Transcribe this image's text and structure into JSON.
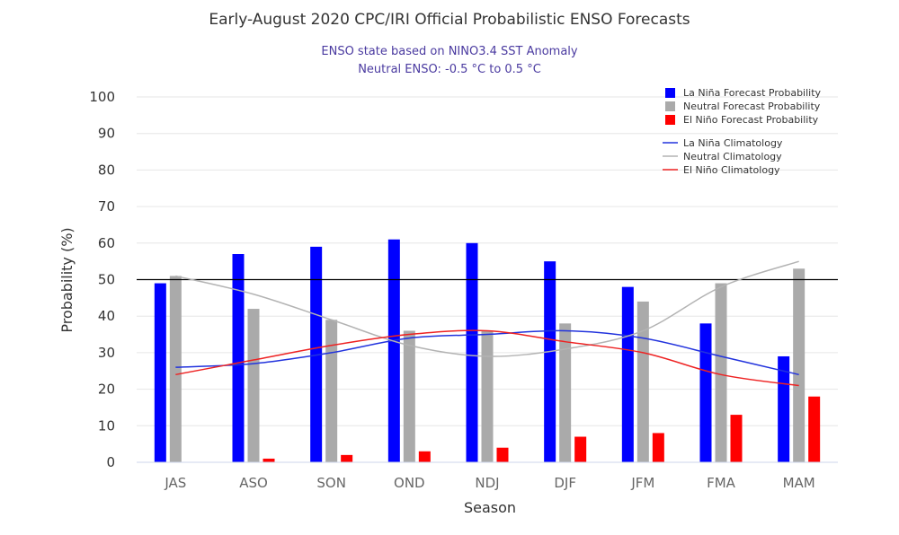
{
  "chart_data": {
    "type": "bar",
    "title": "Early-August 2020 CPC/IRI Official Probabilistic ENSO Forecasts",
    "subtitle_lines": [
      "ENSO state based on NINO3.4 SST Anomaly",
      "Neutral ENSO: -0.5 °C to 0.5 °C"
    ],
    "xlabel": "Season",
    "ylabel": "Probability (%)",
    "ylim": [
      0,
      100
    ],
    "yticks": [
      0,
      10,
      20,
      30,
      40,
      50,
      60,
      70,
      80,
      90,
      100
    ],
    "grid": true,
    "reference_line": 50,
    "legend_position": "top-right",
    "categories": [
      "JAS",
      "ASO",
      "SON",
      "OND",
      "NDJ",
      "DJF",
      "JFM",
      "FMA",
      "MAM"
    ],
    "series": [
      {
        "name": "La Niña Forecast Probability",
        "type": "bar",
        "color": "#0000ff",
        "values": [
          49,
          57,
          59,
          61,
          60,
          55,
          48,
          38,
          29
        ]
      },
      {
        "name": "Neutral Forecast Probability",
        "type": "bar",
        "color": "#aaaaaa",
        "values": [
          51,
          42,
          39,
          36,
          36,
          38,
          44,
          49,
          53
        ]
      },
      {
        "name": "El Niño Forecast Probability",
        "type": "bar",
        "color": "#ff0000",
        "values": [
          0,
          1,
          2,
          3,
          4,
          7,
          8,
          13,
          18
        ]
      },
      {
        "name": "La Niña Climatology",
        "type": "line",
        "color": "#2233dd",
        "values": [
          26,
          27,
          30,
          34,
          35,
          36,
          34,
          29,
          24
        ]
      },
      {
        "name": "Neutral Climatology",
        "type": "line",
        "color": "#b3b3b3",
        "values": [
          51,
          46,
          39,
          32,
          29,
          31,
          36,
          48,
          55
        ]
      },
      {
        "name": "El Niño Climatology",
        "type": "line",
        "color": "#ee2222",
        "values": [
          24,
          28,
          32,
          35,
          36,
          33,
          30,
          24,
          21
        ]
      }
    ]
  }
}
